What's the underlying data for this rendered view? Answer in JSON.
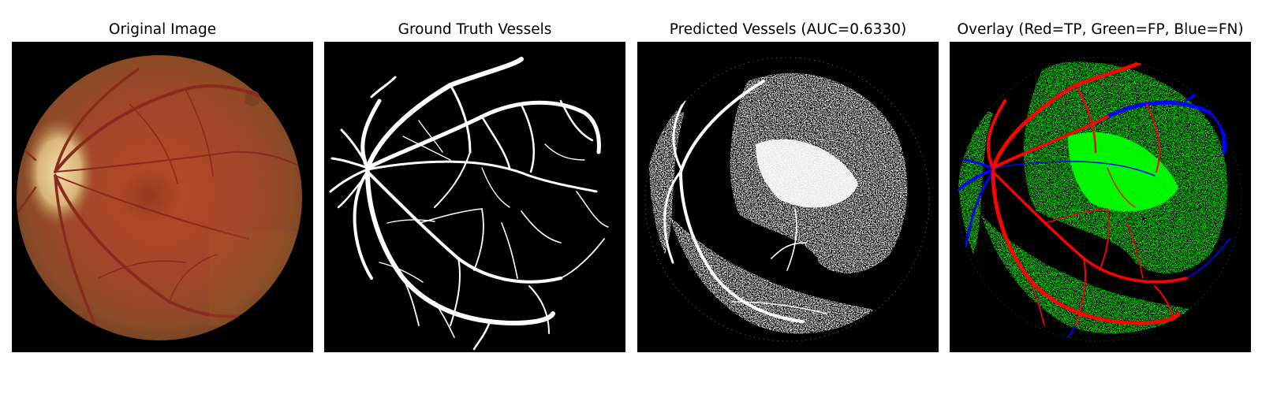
{
  "figure": {
    "panels": [
      {
        "id": "original",
        "title": "Original Image"
      },
      {
        "id": "ground-truth",
        "title": "Ground Truth Vessels"
      },
      {
        "id": "predicted",
        "title": "Predicted Vessels (AUC=0.6330)"
      },
      {
        "id": "overlay",
        "title": "Overlay (Red=TP, Green=FP, Blue=FN)"
      }
    ]
  },
  "colors": {
    "background": "#000000",
    "fundus_center": "#b8502a",
    "fundus_edge": "#6e3a1c",
    "optic_disc": "#e8c890",
    "vessel_fundus": "#8a2a1e",
    "vessel_binary": "#ffffff",
    "true_positive": "#ff0000",
    "false_positive": "#00ff00",
    "false_negative": "#0000ff"
  }
}
